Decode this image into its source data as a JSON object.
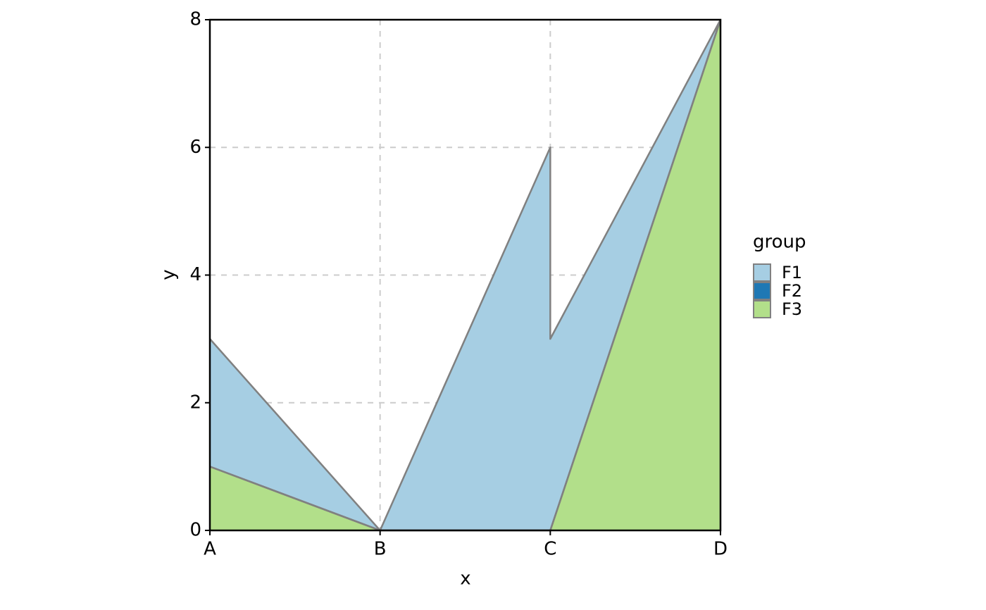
{
  "chart_data": {
    "type": "area",
    "stacked": true,
    "x": [
      0,
      1,
      2,
      2,
      3
    ],
    "xlim": [
      0,
      3
    ],
    "xticks": [
      {
        "value": 0,
        "label": "A"
      },
      {
        "value": 1,
        "label": "B"
      },
      {
        "value": 2,
        "label": "C"
      },
      {
        "value": 3,
        "label": "D"
      }
    ],
    "ylim": [
      0,
      8
    ],
    "yticks": [
      0,
      2,
      4,
      6,
      8
    ],
    "x_label": "x",
    "y_label": "y",
    "legend_title": "group",
    "legend": "right",
    "grid": true,
    "outline_color": "#808080",
    "series": [
      {
        "name": "F1",
        "color": "#a6cee3",
        "values": [
          2,
          0,
          6,
          3,
          0
        ]
      },
      {
        "name": "F2",
        "color": "#1f78b4",
        "values": [
          0,
          0,
          0,
          0,
          0
        ]
      },
      {
        "name": "F3",
        "color": "#b2df8a",
        "values": [
          1,
          0,
          0,
          0,
          8
        ]
      }
    ]
  }
}
